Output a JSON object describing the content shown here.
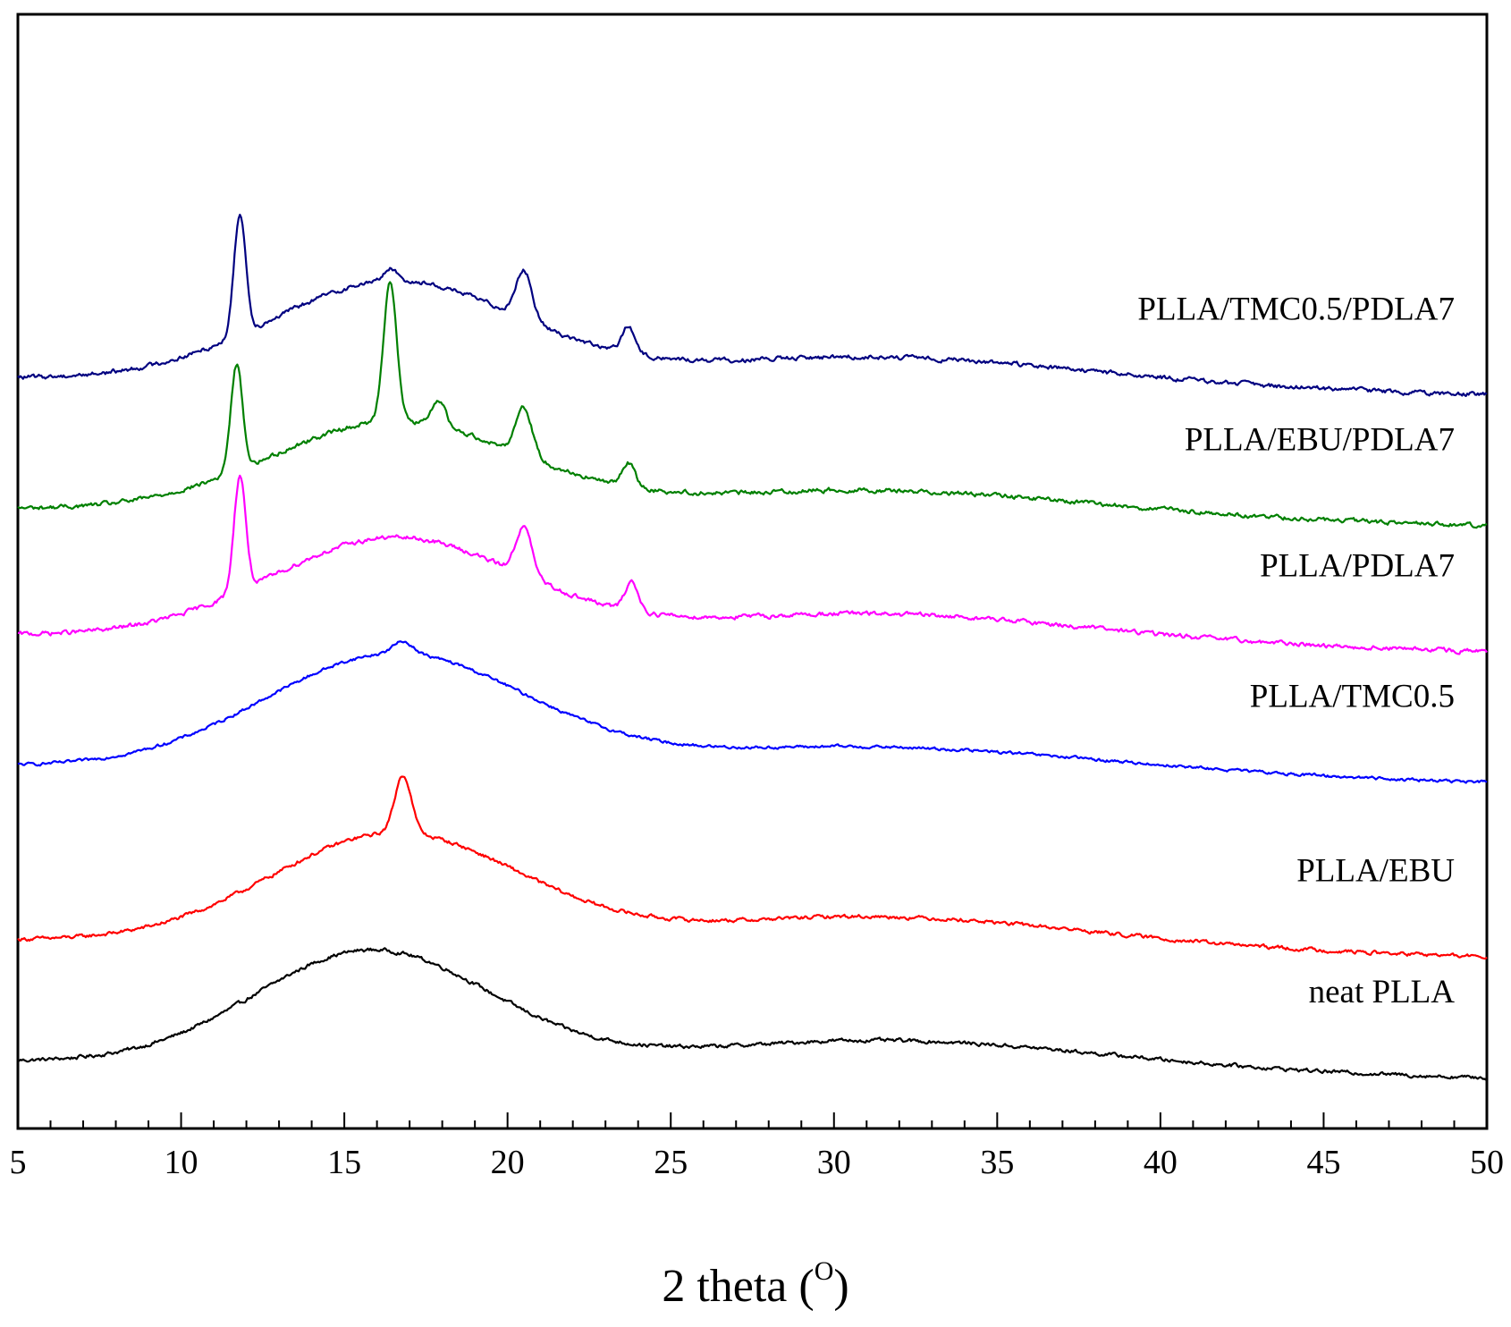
{
  "chart_data": {
    "type": "line",
    "title": "",
    "xlabel": "2 theta (",
    "xlabel_superscript": "O",
    "xlabel_suffix": ")",
    "ylabel": "",
    "xlim": [
      5,
      50
    ],
    "ylim": [
      0,
      23
    ],
    "grid": false,
    "legend": "inline labels at right of each trace",
    "x_ticks": [
      5,
      10,
      15,
      20,
      25,
      30,
      35,
      40,
      45,
      50
    ],
    "x_tick_labels": [
      "5",
      "10",
      "15",
      "20",
      "25",
      "30",
      "35",
      "40",
      "45",
      "50"
    ],
    "series": [
      {
        "name": "neat PLLA",
        "color": "#000000",
        "offset": 1.4,
        "baseline": 0.0,
        "hump": {
          "center": 15.8,
          "width": 3.6,
          "amp": 2.3
        },
        "wide_hump": {
          "center": 32.5,
          "width": 6.0,
          "amp": 0.45
        },
        "peaks": [],
        "noise": 0.05
      },
      {
        "name": "PLLA/EBU",
        "color": "#ff0000",
        "offset": 3.9,
        "baseline": 0.0,
        "hump": {
          "center": 16.5,
          "width": 3.8,
          "amp": 2.2
        },
        "wide_hump": {
          "center": 32.0,
          "width": 6.0,
          "amp": 0.5
        },
        "peaks": [
          {
            "x": 16.8,
            "h": 1.2,
            "w": 0.25
          }
        ],
        "noise": 0.05
      },
      {
        "name": "PLLA/TMC0.5",
        "color": "#0000ff",
        "offset": 7.5,
        "baseline": 0.0,
        "hump": {
          "center": 16.5,
          "width": 4.0,
          "amp": 2.3
        },
        "wide_hump": {
          "center": 32.0,
          "width": 6.5,
          "amp": 0.4
        },
        "peaks": [
          {
            "x": 16.8,
            "h": 0.25,
            "w": 0.3
          }
        ],
        "noise": 0.04
      },
      {
        "name": "PLLA/PDLA7",
        "color": "#ff00ff",
        "offset": 10.2,
        "baseline": 0.0,
        "hump": {
          "center": 16.5,
          "width": 3.8,
          "amp": 2.0
        },
        "wide_hump": {
          "center": 32.0,
          "width": 6.0,
          "amp": 0.45
        },
        "peaks": [
          {
            "x": 11.8,
            "h": 2.4,
            "w": 0.18
          },
          {
            "x": 20.5,
            "h": 1.0,
            "w": 0.25
          },
          {
            "x": 23.8,
            "h": 0.6,
            "w": 0.2
          }
        ],
        "noise": 0.06
      },
      {
        "name": "PLLA/EBU/PDLA7",
        "color": "#008000",
        "offset": 12.8,
        "baseline": 0.0,
        "hump": {
          "center": 16.5,
          "width": 3.8,
          "amp": 1.8
        },
        "wide_hump": {
          "center": 32.0,
          "width": 6.0,
          "amp": 0.4
        },
        "peaks": [
          {
            "x": 11.7,
            "h": 2.2,
            "w": 0.18
          },
          {
            "x": 16.4,
            "h": 2.9,
            "w": 0.2
          },
          {
            "x": 17.9,
            "h": 0.55,
            "w": 0.2
          },
          {
            "x": 20.5,
            "h": 1.0,
            "w": 0.25
          },
          {
            "x": 23.7,
            "h": 0.5,
            "w": 0.2
          }
        ],
        "noise": 0.06
      },
      {
        "name": "PLLA/TMC0.5/PDLA7",
        "color": "#000080",
        "offset": 15.5,
        "baseline": 0.0,
        "hump": {
          "center": 16.5,
          "width": 3.8,
          "amp": 2.0
        },
        "wide_hump": {
          "center": 32.0,
          "width": 6.0,
          "amp": 0.45
        },
        "peaks": [
          {
            "x": 11.8,
            "h": 2.5,
            "w": 0.18
          },
          {
            "x": 16.4,
            "h": 0.25,
            "w": 0.2
          },
          {
            "x": 20.5,
            "h": 1.0,
            "w": 0.25
          },
          {
            "x": 23.7,
            "h": 0.55,
            "w": 0.2
          }
        ],
        "noise": 0.06
      }
    ]
  }
}
